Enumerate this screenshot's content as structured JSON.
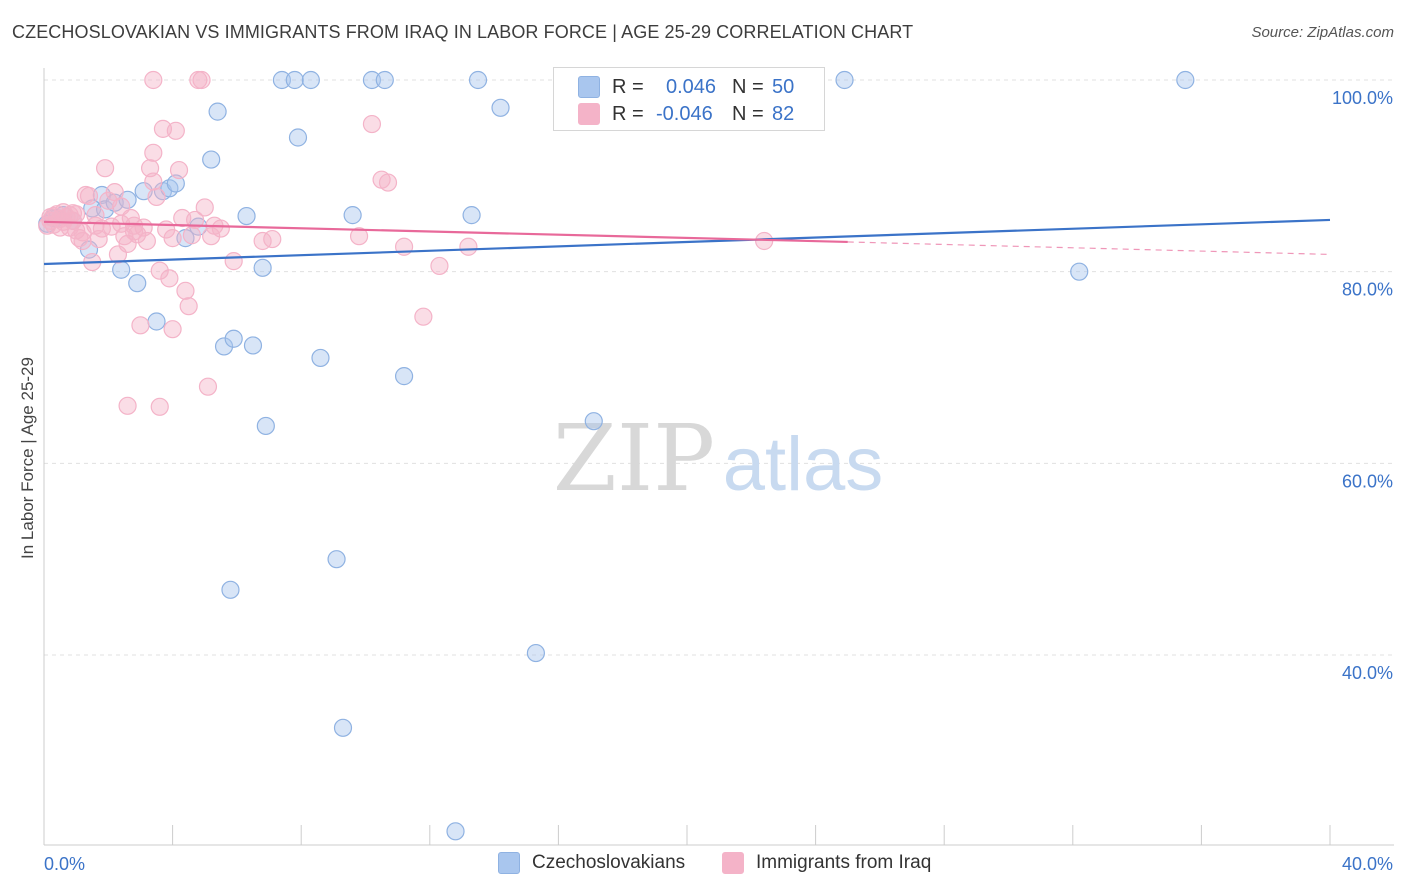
{
  "title": "CZECHOSLOVAKIAN VS IMMIGRANTS FROM IRAQ IN LABOR FORCE | AGE 25-29 CORRELATION CHART",
  "source": "Source: ZipAtlas.com",
  "watermark": {
    "zip": "ZIP",
    "atlas": "atlas"
  },
  "colors": {
    "blue": "#3b73c8",
    "blue_fill": "#a9c6ee",
    "pink": "#e8699a",
    "pink_fill": "#f4b3c8",
    "grid": "#e0e0e0",
    "axis_text": "#3b73c8"
  },
  "legend": {
    "rows": [
      {
        "r_label": "R =",
        "r_value": "0.046",
        "n_label": "N =",
        "n_value": "50"
      },
      {
        "r_label": "R =",
        "r_value": "-0.046",
        "n_label": "N =",
        "n_value": "82"
      }
    ]
  },
  "bottom_legend": [
    "Czechoslovakians",
    "Immigrants from Iraq"
  ],
  "chart_data": {
    "type": "scatter",
    "title": "CZECHOSLOVAKIAN VS IMMIGRANTS FROM IRAQ IN LABOR FORCE | AGE 25-29 CORRELATION CHART",
    "xlabel": "",
    "ylabel": "In Labor Force | Age 25-29",
    "xlim": [
      0,
      40
    ],
    "ylim": [
      21,
      102
    ],
    "x_tick_labels": [
      "0.0%",
      "40.0%"
    ],
    "y_ticks": [
      40,
      60,
      80,
      100
    ],
    "y_tick_labels": [
      "40.0%",
      "60.0%",
      "80.0%",
      "100.0%"
    ],
    "series": [
      {
        "name": "Czechoslovakians",
        "color": "#3b73c8",
        "trend": {
          "x": [
            0,
            40
          ],
          "y": [
            80.8,
            85.4
          ]
        },
        "points": [
          [
            0.1,
            85.0
          ],
          [
            0.4,
            85.6
          ],
          [
            0.6,
            85.9
          ],
          [
            0.9,
            85.3
          ],
          [
            1.4,
            82.3
          ],
          [
            1.5,
            86.6
          ],
          [
            1.8,
            88.0
          ],
          [
            1.9,
            86.5
          ],
          [
            2.2,
            87.2
          ],
          [
            2.4,
            80.2
          ],
          [
            2.6,
            87.5
          ],
          [
            2.9,
            78.8
          ],
          [
            3.1,
            88.4
          ],
          [
            3.5,
            74.8
          ],
          [
            3.7,
            88.4
          ],
          [
            3.9,
            88.7
          ],
          [
            4.1,
            89.2
          ],
          [
            4.4,
            83.5
          ],
          [
            4.8,
            84.7
          ],
          [
            5.2,
            91.7
          ],
          [
            5.4,
            96.7
          ],
          [
            5.6,
            72.2
          ],
          [
            5.8,
            46.8
          ],
          [
            5.9,
            73.0
          ],
          [
            6.3,
            85.8
          ],
          [
            6.5,
            72.3
          ],
          [
            6.8,
            80.4
          ],
          [
            6.9,
            63.9
          ],
          [
            7.4,
            100.0
          ],
          [
            7.8,
            100.0
          ],
          [
            7.9,
            94.0
          ],
          [
            8.3,
            100.0
          ],
          [
            8.6,
            71.0
          ],
          [
            9.1,
            50.0
          ],
          [
            9.3,
            32.4
          ],
          [
            9.6,
            85.9
          ],
          [
            10.2,
            100.0
          ],
          [
            10.6,
            100.0
          ],
          [
            11.2,
            69.1
          ],
          [
            12.8,
            21.6
          ],
          [
            13.3,
            85.9
          ],
          [
            13.5,
            100.0
          ],
          [
            14.2,
            97.1
          ],
          [
            15.3,
            40.2
          ],
          [
            17.1,
            64.4
          ],
          [
            20.5,
            100.0
          ],
          [
            24.9,
            100.0
          ],
          [
            32.2,
            80.0
          ],
          [
            35.5,
            100.0
          ],
          [
            0.3,
            85.6
          ]
        ]
      },
      {
        "name": "Immigrants from Iraq",
        "color": "#e8699a",
        "trend": {
          "x": [
            0,
            25
          ],
          "y": [
            85.2,
            83.1
          ]
        },
        "trend_dashed": {
          "x": [
            25,
            40
          ],
          "y": [
            83.1,
            81.8
          ]
        },
        "points": [
          [
            0.1,
            84.8
          ],
          [
            0.2,
            85.3
          ],
          [
            0.3,
            85.8
          ],
          [
            0.4,
            86.0
          ],
          [
            0.5,
            85.5
          ],
          [
            0.6,
            86.2
          ],
          [
            0.7,
            85.7
          ],
          [
            0.8,
            85.9
          ],
          [
            0.9,
            86.1
          ],
          [
            1.0,
            84.3
          ],
          [
            1.1,
            83.5
          ],
          [
            1.2,
            83.2
          ],
          [
            1.3,
            88.0
          ],
          [
            1.4,
            87.9
          ],
          [
            1.5,
            81.0
          ],
          [
            1.6,
            84.8
          ],
          [
            1.7,
            83.4
          ],
          [
            1.8,
            84.5
          ],
          [
            1.9,
            90.8
          ],
          [
            2.0,
            87.4
          ],
          [
            2.1,
            84.7
          ],
          [
            2.2,
            88.3
          ],
          [
            2.3,
            81.8
          ],
          [
            2.4,
            85.0
          ],
          [
            2.5,
            83.7
          ],
          [
            2.6,
            82.9
          ],
          [
            2.7,
            85.6
          ],
          [
            2.8,
            84.2
          ],
          [
            2.9,
            83.9
          ],
          [
            3.0,
            74.4
          ],
          [
            3.1,
            84.6
          ],
          [
            3.2,
            83.2
          ],
          [
            3.3,
            90.8
          ],
          [
            3.4,
            89.4
          ],
          [
            3.5,
            87.8
          ],
          [
            3.6,
            80.1
          ],
          [
            3.7,
            94.9
          ],
          [
            3.8,
            84.4
          ],
          [
            3.9,
            79.3
          ],
          [
            4.0,
            83.5
          ],
          [
            4.1,
            94.7
          ],
          [
            4.2,
            90.6
          ],
          [
            4.3,
            85.6
          ],
          [
            4.4,
            78.0
          ],
          [
            4.5,
            76.4
          ],
          [
            4.6,
            83.8
          ],
          [
            4.7,
            85.4
          ],
          [
            4.8,
            100.0
          ],
          [
            4.9,
            100.0
          ],
          [
            5.0,
            86.7
          ],
          [
            5.1,
            68.0
          ],
          [
            5.2,
            83.7
          ],
          [
            5.3,
            84.8
          ],
          [
            5.5,
            84.5
          ],
          [
            5.9,
            81.1
          ],
          [
            6.8,
            83.2
          ],
          [
            7.1,
            83.4
          ],
          [
            9.8,
            83.7
          ],
          [
            10.2,
            95.4
          ],
          [
            10.5,
            89.6
          ],
          [
            10.7,
            89.3
          ],
          [
            11.2,
            82.6
          ],
          [
            11.8,
            75.3
          ],
          [
            12.3,
            80.6
          ],
          [
            13.2,
            82.6
          ],
          [
            22.4,
            83.2
          ],
          [
            2.6,
            66.0
          ],
          [
            3.6,
            65.9
          ],
          [
            4.0,
            74.0
          ],
          [
            1.6,
            85.9
          ],
          [
            0.5,
            84.6
          ],
          [
            3.4,
            100.0
          ],
          [
            3.4,
            92.4
          ],
          [
            0.9,
            85.3
          ],
          [
            2.4,
            86.8
          ],
          [
            1.2,
            84.1
          ],
          [
            0.3,
            84.9
          ],
          [
            0.6,
            85.2
          ],
          [
            2.8,
            84.8
          ],
          [
            1.0,
            86.0
          ],
          [
            0.2,
            85.7
          ],
          [
            0.8,
            84.6
          ]
        ]
      }
    ],
    "legend_position": "top-center"
  }
}
